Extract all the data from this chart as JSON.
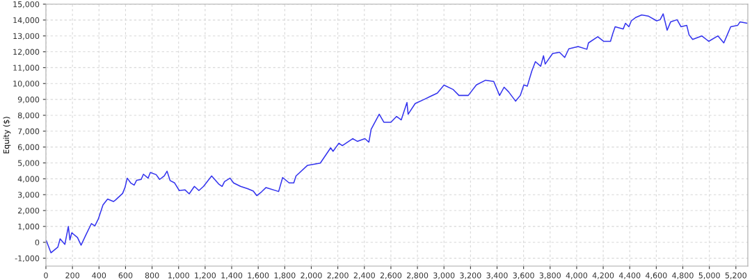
{
  "chart_data": {
    "type": "line",
    "ylabel": "Equity ($)",
    "xlim": [
      0,
      5290
    ],
    "ylim": [
      -1500,
      15000
    ],
    "grid": true,
    "marker": "none",
    "line_style": "solid",
    "xticks": [
      0,
      200,
      400,
      600,
      800,
      {
        "value": 1000,
        "label": "1,000"
      },
      {
        "value": 1200,
        "label": "1,200"
      },
      {
        "value": 1400,
        "label": "1,400"
      },
      {
        "value": 1600,
        "label": "1,600"
      },
      {
        "value": 1800,
        "label": "1,800"
      },
      {
        "value": 2000,
        "label": "2,000"
      },
      {
        "value": 2200,
        "label": "2,200"
      },
      {
        "value": 2400,
        "label": "2,400"
      },
      {
        "value": 2600,
        "label": "2,600"
      },
      {
        "value": 2800,
        "label": "2,800"
      },
      {
        "value": 3000,
        "label": "3,000"
      },
      {
        "value": 3200,
        "label": "3,200"
      },
      {
        "value": 3400,
        "label": "3,400"
      },
      {
        "value": 3600,
        "label": "3,600"
      },
      {
        "value": 3800,
        "label": "3,800"
      },
      {
        "value": 4000,
        "label": "4,000"
      },
      {
        "value": 4200,
        "label": "4,200"
      },
      {
        "value": 4400,
        "label": "4,400"
      },
      {
        "value": 4600,
        "label": "4,600"
      },
      {
        "value": 4800,
        "label": "4,800"
      },
      {
        "value": 5000,
        "label": "5,000"
      },
      {
        "value": 5200,
        "label": "5,200"
      }
    ],
    "yticks": [
      {
        "value": -1000,
        "label": "-1,000"
      },
      0,
      {
        "value": 1000,
        "label": "1,000"
      },
      {
        "value": 2000,
        "label": "2,000"
      },
      {
        "value": 3000,
        "label": "3,000"
      },
      {
        "value": 4000,
        "label": "4,000"
      },
      {
        "value": 5000,
        "label": "5,000"
      },
      {
        "value": 6000,
        "label": "6,000"
      },
      {
        "value": 7000,
        "label": "7,000"
      },
      {
        "value": 8000,
        "label": "8,000"
      },
      {
        "value": 9000,
        "label": "9,000"
      },
      {
        "value": 10000,
        "label": "10,000"
      },
      {
        "value": 11000,
        "label": "11,000"
      },
      {
        "value": 12000,
        "label": "12,000"
      },
      {
        "value": 13000,
        "label": "13,000"
      },
      {
        "value": 14000,
        "label": "14,000"
      },
      {
        "value": 15000,
        "label": "15,000"
      }
    ],
    "series": [
      {
        "color": "#3333ee",
        "x": [
          3,
          38,
          90,
          107,
          143,
          169,
          181,
          195,
          238,
          265,
          300,
          343,
          369,
          395,
          430,
          465,
          509,
          523,
          578,
          596,
          613,
          639,
          665,
          683,
          718,
          735,
          770,
          787,
          831,
          857,
          892,
          913,
          936,
          970,
          1005,
          1049,
          1080,
          1119,
          1153,
          1188,
          1249,
          1302,
          1328,
          1346,
          1388,
          1414,
          1467,
          1519,
          1563,
          1589,
          1624,
          1659,
          1754,
          1784,
          1833,
          1868,
          1885,
          1972,
          2068,
          2146,
          2164,
          2208,
          2234,
          2312,
          2347,
          2404,
          2434,
          2451,
          2512,
          2547,
          2600,
          2643,
          2678,
          2721,
          2730,
          2783,
          2850,
          2900,
          2950,
          3000,
          3070,
          3113,
          3183,
          3244,
          3314,
          3375,
          3419,
          3453,
          3488,
          3540,
          3575,
          3602,
          3628,
          3662,
          3689,
          3729,
          3750,
          3763,
          3819,
          3871,
          3910,
          3941,
          4011,
          4077,
          4089,
          4159,
          4203,
          4255,
          4272,
          4290,
          4351,
          4368,
          4394,
          4412,
          4447,
          4490,
          4542,
          4603,
          4629,
          4652,
          4682,
          4708,
          4757,
          4786,
          4830,
          4847,
          4874,
          4943,
          4995,
          5065,
          5109,
          5135,
          5161,
          5213,
          5231,
          5283
        ],
        "values": [
          100,
          -660,
          -300,
          220,
          -130,
          1000,
          150,
          600,
          300,
          -180,
          440,
          1180,
          1030,
          1470,
          2350,
          2720,
          2570,
          2650,
          3080,
          3450,
          4040,
          3740,
          3600,
          3900,
          3960,
          4290,
          4040,
          4400,
          4260,
          3960,
          4180,
          4480,
          3890,
          3740,
          3260,
          3300,
          3050,
          3520,
          3260,
          3520,
          4180,
          3670,
          3520,
          3820,
          4040,
          3740,
          3520,
          3380,
          3230,
          2940,
          3170,
          3450,
          3200,
          4080,
          3740,
          3740,
          4180,
          4850,
          4990,
          5950,
          5730,
          6240,
          6090,
          6530,
          6360,
          6530,
          6310,
          7120,
          8070,
          7560,
          7560,
          7930,
          7710,
          8810,
          8070,
          8740,
          9000,
          9200,
          9400,
          9900,
          9620,
          9250,
          9250,
          9910,
          10210,
          10130,
          9250,
          9770,
          9470,
          8890,
          9250,
          9910,
          9840,
          10790,
          11380,
          11090,
          11750,
          11230,
          11890,
          11970,
          11640,
          12190,
          12330,
          12160,
          12560,
          12950,
          12660,
          12660,
          13140,
          13580,
          13440,
          13800,
          13580,
          13950,
          14170,
          14320,
          14240,
          13950,
          14020,
          14390,
          13360,
          13880,
          14020,
          13580,
          13660,
          13070,
          12780,
          13000,
          12660,
          13000,
          12560,
          13070,
          13580,
          13660,
          13880,
          13800
        ]
      }
    ]
  }
}
